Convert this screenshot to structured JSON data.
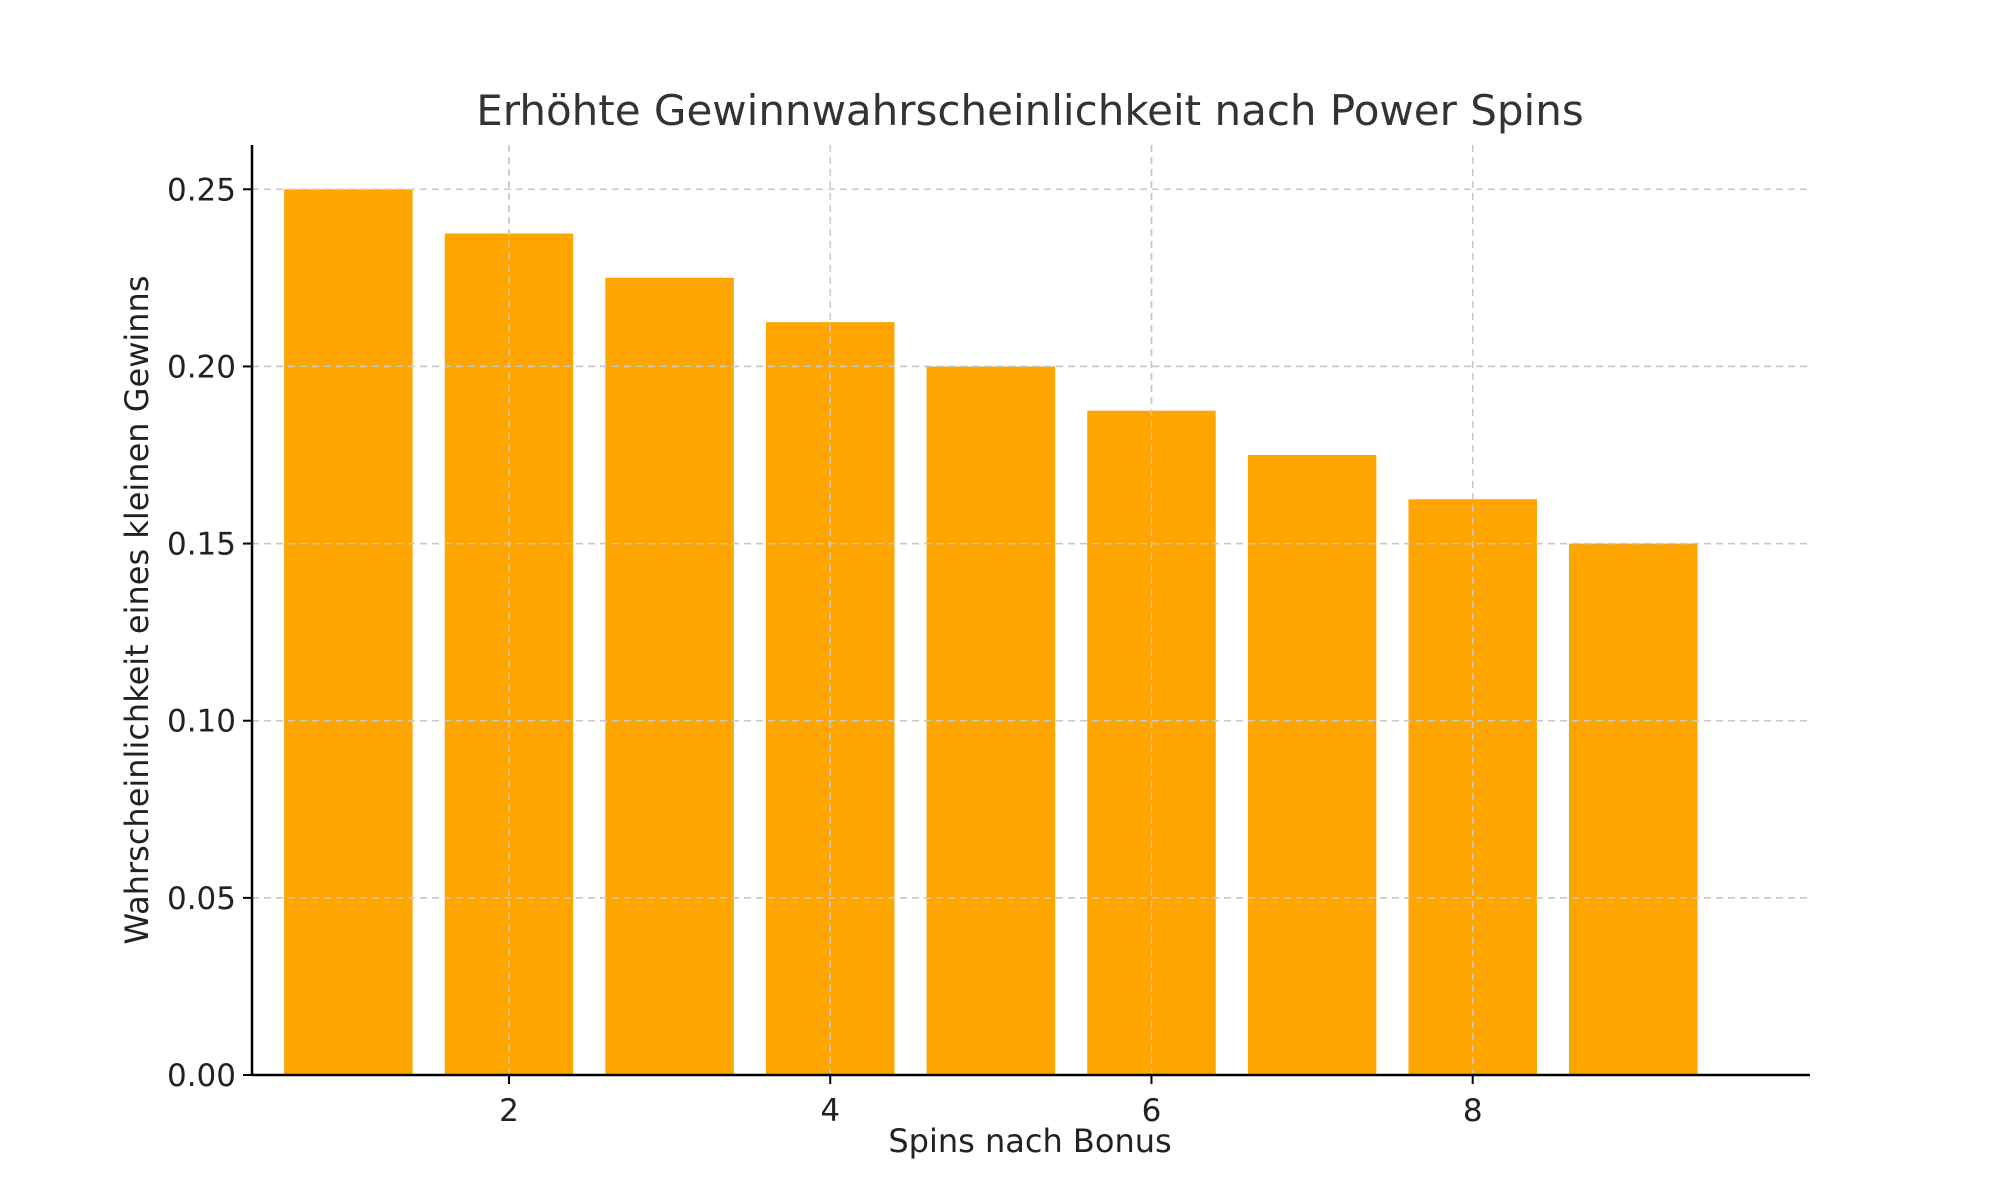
{
  "chart_data": {
    "type": "bar",
    "title": "Erhöhte Gewinnwahrscheinlichkeit nach Power Spins",
    "xlabel": "Spins nach Bonus",
    "ylabel": "Wahrscheinlichkeit eines kleinen Gewinns",
    "x": [
      1,
      2,
      3,
      4,
      5,
      6,
      7,
      8,
      9
    ],
    "values": [
      0.25,
      0.2375,
      0.225,
      0.2125,
      0.2,
      0.1875,
      0.175,
      0.1625,
      0.15
    ],
    "xlim": [
      0.4,
      10.1
    ],
    "ylim": [
      0,
      0.2625
    ],
    "x_ticks": [
      2,
      4,
      6,
      8
    ],
    "y_ticks": [
      0.0,
      0.05,
      0.1,
      0.15,
      0.2,
      0.25
    ],
    "y_tick_labels": [
      "0.00",
      "0.05",
      "0.10",
      "0.15",
      "0.20",
      "0.25"
    ],
    "bar_color": "#FFA500",
    "grid": true,
    "legend": "none"
  }
}
